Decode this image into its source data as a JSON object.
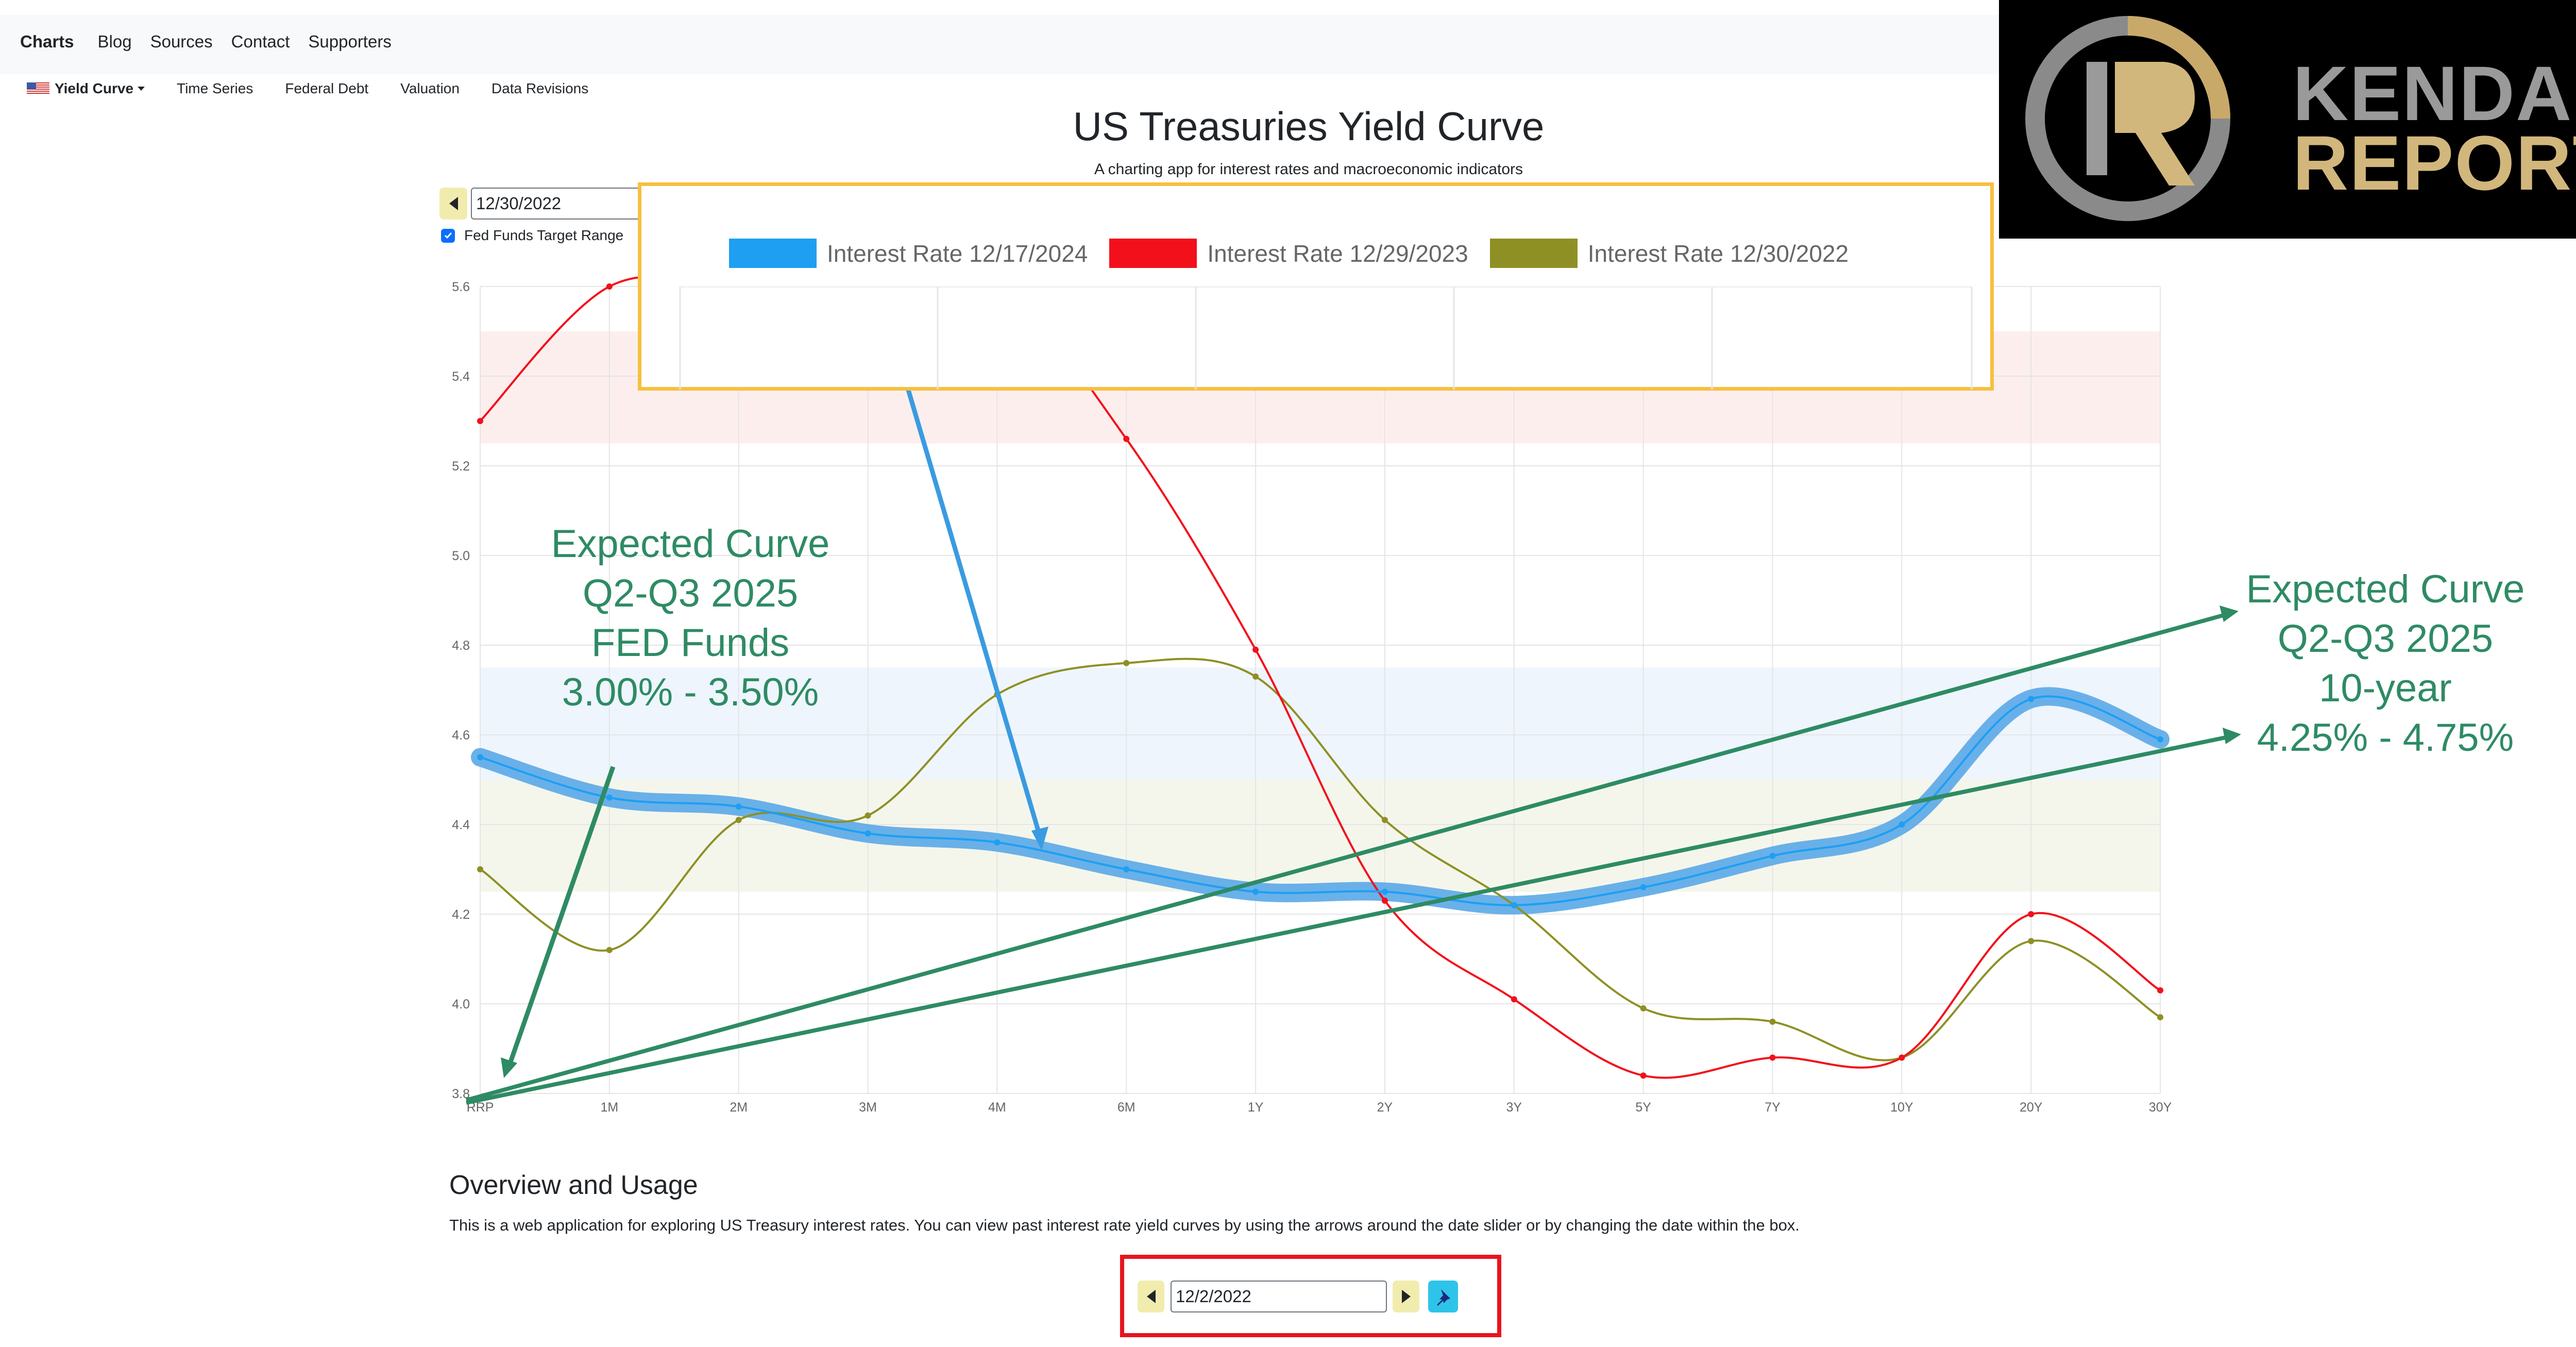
{
  "nav": {
    "brand": "Charts",
    "links": [
      "Blog",
      "Sources",
      "Contact",
      "Supporters"
    ]
  },
  "subnav": {
    "dropdown": "Yield Curve",
    "items": [
      "Time Series",
      "Federal Debt",
      "Valuation",
      "Data Revisions"
    ]
  },
  "page": {
    "title": "US Treasuries Yield Curve",
    "subtitle": "A charting app for interest rates and macroeconomic indicators"
  },
  "controls": {
    "date_value": "12/30/2022",
    "fed_funds_label": "Fed Funds Target Range",
    "fed_funds_checked": true
  },
  "legend": {
    "items": [
      {
        "label": "Interest Rate 12/17/2024",
        "color": "#1e9ff2"
      },
      {
        "label": "Interest Rate 12/29/2023",
        "color": "#f2101b"
      },
      {
        "label": "Interest Rate 12/30/2022",
        "color": "#8e9024"
      }
    ]
  },
  "logo": {
    "line1": "KENDALL",
    "line2": "REPORT"
  },
  "annotations": {
    "left": [
      "Expected Curve",
      "Q2-Q3 2025",
      "FED Funds",
      "3.00% - 3.50%"
    ],
    "right": [
      "Expected Curve",
      "Q2-Q3 2025",
      "10-year",
      "4.25% - 4.75%"
    ],
    "color": "#2e8b64"
  },
  "chart_data": {
    "type": "line",
    "categories": [
      "RRP",
      "1M",
      "2M",
      "3M",
      "4M",
      "6M",
      "1Y",
      "2Y",
      "3Y",
      "5Y",
      "7Y",
      "10Y",
      "20Y",
      "30Y"
    ],
    "ylim": [
      3.8,
      5.6
    ],
    "yticks": [
      3.8,
      4.0,
      4.2,
      4.4,
      4.6,
      4.8,
      5.0,
      5.2,
      5.4,
      5.6
    ],
    "grid": true,
    "legend_position": "top",
    "series": [
      {
        "name": "Interest Rate 12/17/2024",
        "color": "#1e9ff2",
        "values": [
          4.55,
          4.46,
          4.44,
          4.38,
          4.36,
          4.3,
          4.25,
          4.25,
          4.22,
          4.26,
          4.33,
          4.4,
          4.68,
          4.59
        ]
      },
      {
        "name": "Interest Rate 12/29/2023",
        "color": "#f2101b",
        "values": [
          5.3,
          5.6,
          5.6,
          5.6,
          5.6,
          5.26,
          4.79,
          4.23,
          4.01,
          3.84,
          3.88,
          3.88,
          4.2,
          4.03
        ]
      },
      {
        "name": "Interest Rate 12/30/2022",
        "color": "#8e9024",
        "values": [
          4.3,
          4.12,
          4.41,
          4.42,
          4.69,
          4.76,
          4.73,
          4.41,
          4.22,
          3.99,
          3.96,
          3.88,
          4.14,
          3.97
        ]
      }
    ],
    "bands": [
      {
        "from": 5.25,
        "to": 5.5,
        "color": "#fdeeee"
      },
      {
        "from": 4.5,
        "to": 4.75,
        "color": "#eef5fd"
      },
      {
        "from": 4.25,
        "to": 4.5,
        "color": "#f4f6ec"
      }
    ]
  },
  "overview": {
    "heading": "Overview and Usage",
    "text": "This is a web application for exploring US Treasury interest rates. You can view past interest rate yield curves by using the arrows around the date slider or by changing the date within the box.",
    "date_value": "12/2/2022"
  }
}
